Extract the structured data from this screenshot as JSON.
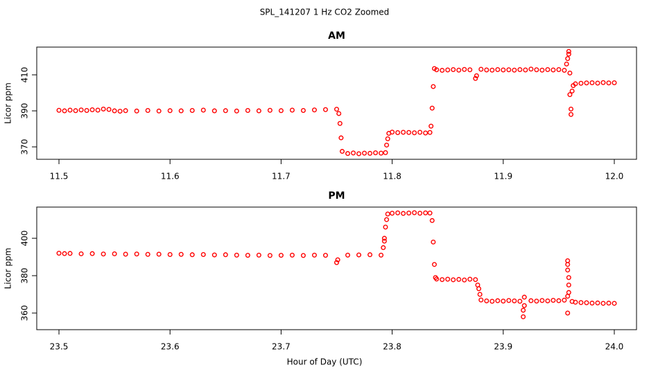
{
  "title": "SPL_141207  1 Hz CO2 Zoomed",
  "xlabel": "Hour of Day (UTC)",
  "chart_data": [
    {
      "type": "scatter",
      "title": "AM",
      "ylabel": "Licor ppm",
      "color": "#ff0000",
      "xlim": [
        11.48,
        12.02
      ],
      "ylim": [
        363.1,
        425.4
      ],
      "xticks": [
        11.5,
        11.6,
        11.7,
        11.8,
        11.9,
        {
          "value": 12,
          "label": "12.0"
        }
      ],
      "yticks": [
        370,
        390,
        410
      ],
      "x": [
        11.5,
        11.505,
        11.51,
        11.515,
        11.52,
        11.525,
        11.53,
        11.535,
        11.54,
        11.545,
        11.55,
        11.555,
        11.56,
        11.57,
        11.58,
        11.59,
        11.6,
        11.61,
        11.62,
        11.63,
        11.64,
        11.65,
        11.66,
        11.67,
        11.68,
        11.69,
        11.7,
        11.71,
        11.72,
        11.73,
        11.74,
        11.75,
        11.752,
        11.753,
        11.754,
        11.755,
        11.76,
        11.765,
        11.77,
        11.775,
        11.78,
        11.785,
        11.79,
        11.794,
        11.795,
        11.796,
        11.797,
        11.8,
        11.805,
        11.81,
        11.815,
        11.82,
        11.825,
        11.83,
        11.834,
        11.835,
        11.836,
        11.837,
        11.838,
        11.84,
        11.845,
        11.85,
        11.855,
        11.86,
        11.865,
        11.87,
        11.875,
        11.876,
        11.88,
        11.885,
        11.89,
        11.895,
        11.9,
        11.905,
        11.91,
        11.915,
        11.92,
        11.925,
        11.93,
        11.935,
        11.94,
        11.945,
        11.95,
        11.955,
        11.957,
        11.958,
        11.959,
        11.959,
        11.96,
        11.96,
        11.961,
        11.961,
        11.962,
        11.963,
        11.965,
        11.97,
        11.975,
        11.98,
        11.985,
        11.99,
        11.995,
        12.0
      ],
      "values": [
        390.3,
        390.0,
        390.4,
        390.1,
        390.5,
        390.2,
        390.6,
        390.4,
        391.0,
        390.8,
        390.0,
        389.8,
        390.1,
        389.9,
        390.2,
        389.9,
        390.1,
        390.0,
        390.2,
        390.4,
        390.0,
        390.1,
        389.9,
        390.2,
        390.0,
        390.3,
        390.1,
        390.4,
        390.2,
        390.5,
        390.7,
        390.9,
        388.5,
        383,
        375,
        367.5,
        366.3,
        366.6,
        366.2,
        366.5,
        366.4,
        366.7,
        366.5,
        366.8,
        371,
        374.5,
        377.5,
        378.2,
        377.9,
        378.1,
        378.0,
        377.8,
        378.1,
        377.7,
        378.0,
        381.5,
        391.5,
        403.5,
        413.5,
        412.8,
        412.5,
        412.7,
        412.9,
        412.6,
        413.0,
        412.8,
        408.0,
        409.5,
        413.1,
        412.7,
        412.6,
        412.9,
        412.7,
        412.8,
        412.6,
        412.9,
        412.7,
        413.2,
        412.8,
        412.6,
        412.9,
        412.7,
        412.9,
        412.5,
        416,
        419,
        421.5,
        423,
        411,
        399,
        391,
        388,
        401,
        404,
        405.0,
        405.3,
        405.5,
        405.6,
        405.4,
        405.7,
        405.5,
        405.6
      ]
    },
    {
      "type": "scatter",
      "title": "PM",
      "ylabel": "Licor ppm",
      "color": "#ff0000",
      "xlim": [
        23.48,
        24.02
      ],
      "ylim": [
        351.1,
        416.7
      ],
      "xticks": [
        23.5,
        23.6,
        23.7,
        23.8,
        23.9,
        {
          "value": 24,
          "label": "24.0"
        }
      ],
      "yticks": [
        360,
        380,
        400
      ],
      "x": [
        23.5,
        23.505,
        23.51,
        23.52,
        23.53,
        23.54,
        23.55,
        23.56,
        23.57,
        23.58,
        23.59,
        23.6,
        23.61,
        23.62,
        23.63,
        23.64,
        23.65,
        23.66,
        23.67,
        23.68,
        23.69,
        23.7,
        23.71,
        23.72,
        23.73,
        23.74,
        23.75,
        23.751,
        23.76,
        23.77,
        23.78,
        23.79,
        23.792,
        23.793,
        23.793,
        23.794,
        23.795,
        23.796,
        23.8,
        23.805,
        23.81,
        23.815,
        23.82,
        23.825,
        23.83,
        23.834,
        23.836,
        23.837,
        23.838,
        23.839,
        23.84,
        23.845,
        23.85,
        23.855,
        23.86,
        23.865,
        23.87,
        23.875,
        23.877,
        23.878,
        23.879,
        23.88,
        23.885,
        23.89,
        23.895,
        23.9,
        23.905,
        23.91,
        23.915,
        23.918,
        23.918,
        23.919,
        23.919,
        23.925,
        23.93,
        23.935,
        23.94,
        23.945,
        23.95,
        23.955,
        23.958,
        23.958,
        23.959,
        23.959,
        23.959,
        23.958,
        23.958,
        23.958,
        23.962,
        23.965,
        23.97,
        23.975,
        23.98,
        23.985,
        23.99,
        23.995,
        24.0
      ],
      "values": [
        392.0,
        391.8,
        391.9,
        391.7,
        391.8,
        391.6,
        391.7,
        391.5,
        391.6,
        391.4,
        391.5,
        391.3,
        391.4,
        391.2,
        391.3,
        391.1,
        391.2,
        391.0,
        390.9,
        391.0,
        390.8,
        390.9,
        391.0,
        390.8,
        391.0,
        390.9,
        387.0,
        388.5,
        391.0,
        391.1,
        391.2,
        391.0,
        395,
        398.5,
        400,
        406,
        410,
        413,
        413.4,
        413.6,
        413.3,
        413.5,
        413.7,
        413.4,
        413.6,
        413.5,
        409.5,
        398,
        386,
        379,
        378.2,
        377.9,
        378.1,
        377.8,
        378.0,
        377.7,
        378.1,
        377.9,
        375,
        373,
        370,
        367,
        366.5,
        366.3,
        366.6,
        366.4,
        366.7,
        366.5,
        366.3,
        358,
        361.5,
        364,
        368.5,
        366.6,
        366.4,
        366.7,
        366.5,
        366.8,
        366.6,
        366.9,
        360,
        369,
        371,
        375,
        379,
        383,
        386,
        388,
        366.2,
        365.8,
        365.6,
        365.5,
        365.3,
        365.4,
        365.2,
        365.3,
        365.2
      ]
    }
  ]
}
